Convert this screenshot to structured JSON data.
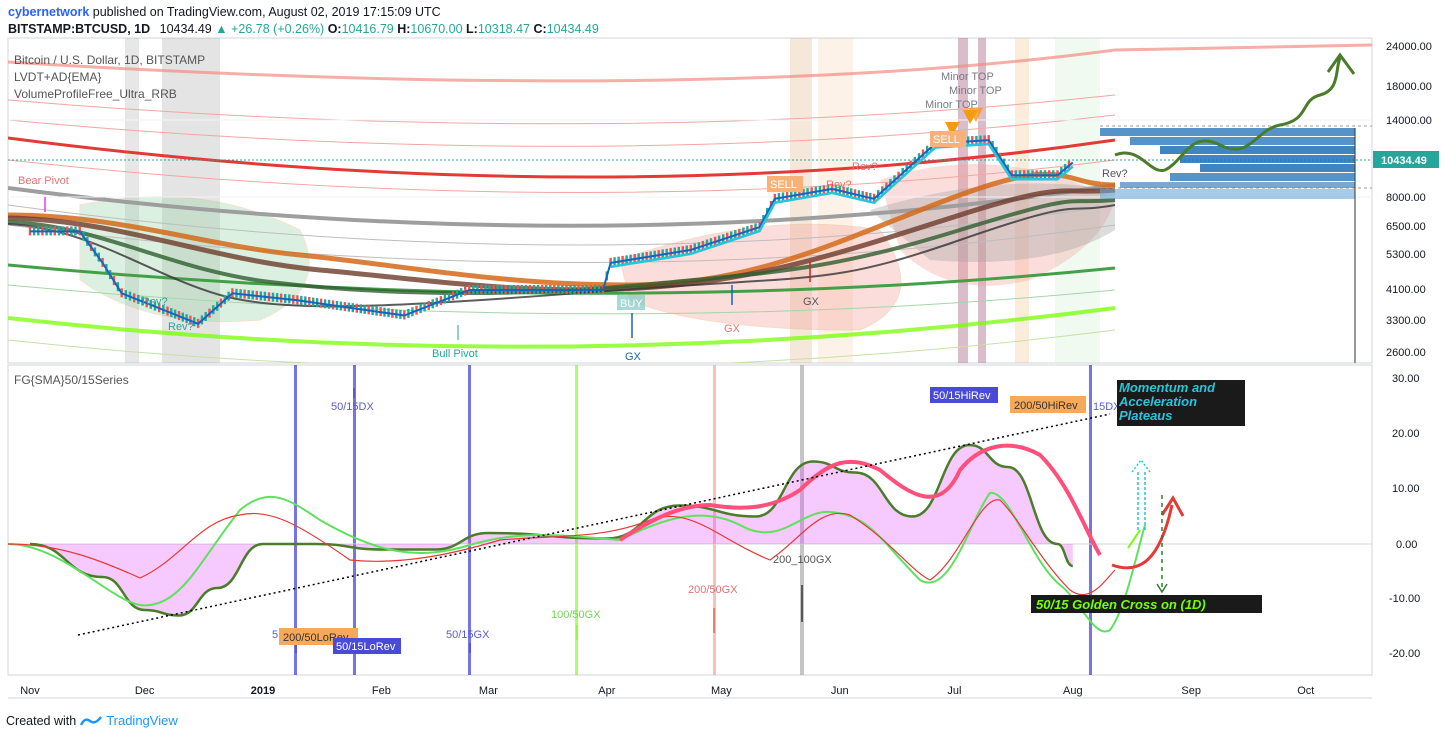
{
  "header": {
    "user": "cybernetwork",
    "published_text": "published on TradingView.com, August 02, 2019 17:15:09 UTC",
    "symbol": "BITSTAMP:BTCUSD, 1D",
    "last": "10434.49",
    "change": "▲ +26.78 (+0.26%)",
    "o_label": "O:",
    "o": "10416.79",
    "h_label": "H:",
    "h": "10670.00",
    "l_label": "L:",
    "l": "10318.47",
    "c_label": "C:",
    "c": "10434.49"
  },
  "main_pane": {
    "legend": [
      "Bitcoin / U.S. Dollar, 1D, BITSTAMP",
      "LVDT+AD{EMA}",
      "VolumeProfileFree_Ultra_RRB"
    ],
    "price_ticks": [
      "24000.00",
      "18000.00",
      "14000.00",
      "10434.49",
      "8000.00",
      "6500.00",
      "5300.00",
      "4100.00",
      "3300.00",
      "2600.00"
    ],
    "last_price_label": "10434.49",
    "annotations": {
      "bear_pivot": "Bear Pivot",
      "bull_pivot": "Bull Pivot",
      "rev1": "Rev?",
      "rev2": "Rev?",
      "rev3": "Rev?",
      "rev4": "Rev?",
      "rev5": "Rev?",
      "buy": "BUY",
      "gx1": "GX",
      "gx2": "GX",
      "gx3": "GX",
      "sell1": "SELL",
      "sell2": "SELL",
      "minor_top1": "Minor TOP",
      "minor_top2": "Minor TOP",
      "minor_top3": "Minor TOP"
    }
  },
  "osc_pane": {
    "legend": "FG{SMA}50/15Series",
    "y_ticks": [
      "30.00",
      "20.00",
      "10.00",
      "0.00",
      "-10.00",
      "-20.00"
    ],
    "labels": {
      "dx_50_15": "50/15DX",
      "dx_50_15_b": "15DX",
      "gx_50_15": "50/15GX",
      "gx_100_50": "100/50GX",
      "gx_200_50": "200/50GX",
      "gx_200_100": "200_100GX",
      "lo_rev_200_50": "200/50LoRev",
      "lo_rev_50_15": "50/15LoRev",
      "hi_rev_50_15": "50/15HiRev",
      "hi_rev_200_50": "200/50HiRev",
      "momentum": "Momentum and Acceleration Plateaus",
      "golden_cross": "50/15 Golden Cross on (1D)",
      "five": "5"
    }
  },
  "chart_data": {
    "type": "line",
    "title": "Bitcoin / U.S. Dollar, 1D, BITSTAMP",
    "x_ticks": [
      "Nov",
      "Dec",
      "2019",
      "Feb",
      "Mar",
      "Apr",
      "May",
      "Jun",
      "Jul",
      "Aug",
      "Sep",
      "Oct"
    ],
    "series": [
      {
        "name": "BTCUSD",
        "x": [
          "2018-11-01",
          "2018-11-14",
          "2018-11-20",
          "2018-11-25",
          "2018-12-07",
          "2018-12-15",
          "2018-12-24",
          "2019-01-10",
          "2019-02-07",
          "2019-02-24",
          "2019-03-31",
          "2019-04-02",
          "2019-04-23",
          "2019-05-11",
          "2019-05-15",
          "2019-05-30",
          "2019-06-10",
          "2019-06-26",
          "2019-07-10",
          "2019-07-16",
          "2019-07-28",
          "2019-08-01"
        ],
        "values": [
          6300,
          6300,
          5000,
          4000,
          3500,
          3200,
          4000,
          3800,
          3400,
          4100,
          4100,
          5000,
          5500,
          6500,
          8000,
          8600,
          8000,
          12000,
          12300,
          9500,
          9500,
          10434.49
        ]
      }
    ],
    "ylabel_scale": "log",
    "ylim": [
      2400,
      26000
    ],
    "oscillator": {
      "name": "FG{SMA}50/15Series",
      "ylim": [
        -22,
        31
      ],
      "x": [
        "2018-11-01",
        "2018-11-20",
        "2018-12-01",
        "2018-12-10",
        "2018-12-20",
        "2019-01-01",
        "2019-01-15",
        "2019-02-01",
        "2019-02-15",
        "2019-03-01",
        "2019-04-01",
        "2019-04-20",
        "2019-05-10",
        "2019-05-25",
        "2019-06-05",
        "2019-06-20",
        "2019-07-05",
        "2019-07-15",
        "2019-07-28",
        "2019-08-01"
      ],
      "values": [
        0,
        -6,
        -12,
        -13,
        -8,
        0,
        0,
        -1,
        -1,
        2,
        1,
        7,
        5,
        15,
        13,
        5,
        18,
        14,
        0,
        -4
      ]
    }
  }
}
